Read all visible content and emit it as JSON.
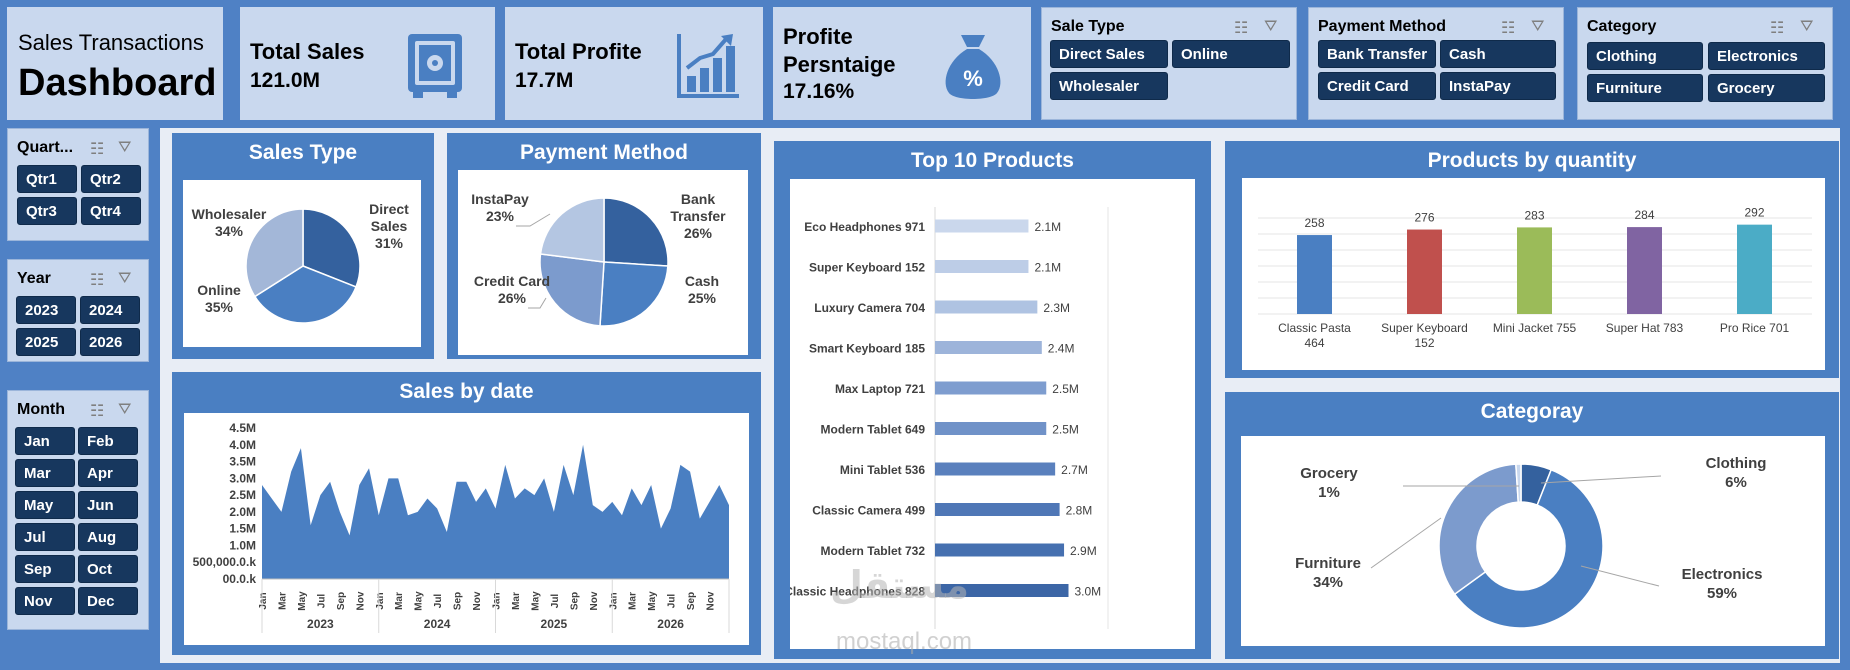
{
  "title": {
    "line1": "Sales Transactions",
    "line2": "Dashboard"
  },
  "kpis": {
    "total_sales": {
      "label": "Total Sales",
      "value": "121.0M",
      "icon": "safe-icon"
    },
    "total_profit": {
      "label": "Total Profite",
      "value": "17.7M",
      "icon": "growth-chart-icon"
    },
    "profit_pct": {
      "label1": "Profite",
      "label2": "Persntaige",
      "value": "17.16%",
      "icon": "money-bag-percent-icon"
    }
  },
  "slicers": {
    "sale_type": {
      "title": "Sale Type",
      "options": [
        "Direct Sales",
        "Online",
        "Wholesaler"
      ]
    },
    "payment_method": {
      "title": "Payment Method",
      "options": [
        "Bank Transfer",
        "Cash",
        "Credit Card",
        "InstaPay"
      ]
    },
    "category": {
      "title": "Category",
      "options": [
        "Clothing",
        "Electronics",
        "Furniture",
        "Grocery"
      ]
    },
    "quarter": {
      "title": "Quart...",
      "options": [
        "Qtr1",
        "Qtr2",
        "Qtr3",
        "Qtr4"
      ]
    },
    "year": {
      "title": "Year",
      "options": [
        "2023",
        "2024",
        "2025",
        "2026"
      ]
    },
    "month": {
      "title": "Month",
      "options": [
        "Jan",
        "Feb",
        "Mar",
        "Apr",
        "May",
        "Jun",
        "Jul",
        "Aug",
        "Sep",
        "Oct",
        "Nov",
        "Dec"
      ]
    }
  },
  "colors": {
    "dark_button": "#17375e",
    "panel_blue": "#4a7fc2",
    "light_panel": "#c9d8ee",
    "bar_dark": "#2f5597"
  },
  "chart_data": [
    {
      "type": "pie",
      "title": "Sales Type",
      "slices": [
        {
          "label": "Direct Sales",
          "value": 31,
          "display": "31%",
          "color": "#34619e"
        },
        {
          "label": "Online",
          "value": 35,
          "display": "35%",
          "color": "#4a7fc2"
        },
        {
          "label": "Wholesaler",
          "value": 34,
          "display": "34%",
          "color": "#a3b7d8"
        }
      ]
    },
    {
      "type": "pie",
      "title": "Payment Method",
      "slices": [
        {
          "label": "Bank Transfer",
          "value": 26,
          "display": "26%",
          "color": "#34619e"
        },
        {
          "label": "Cash",
          "value": 25,
          "display": "25%",
          "color": "#4a7fc2"
        },
        {
          "label": "Credit Card",
          "value": 26,
          "display": "26%",
          "color": "#7c9bcd"
        },
        {
          "label": "InstaPay",
          "value": 23,
          "display": "23%",
          "color": "#b4c6e2"
        }
      ]
    },
    {
      "type": "bar",
      "title": "Top 10 Products",
      "categories": [
        "Eco Headphones 971",
        "Super Keyboard 152",
        "Luxury Camera 704",
        "Smart Keyboard 185",
        "Max Laptop 721",
        "Modern Tablet 649",
        "Mini Tablet 536",
        "Classic Camera 499",
        "Modern Tablet 732",
        "Classic Headphones 828"
      ],
      "values": [
        2.1,
        2.1,
        2.3,
        2.4,
        2.5,
        2.5,
        2.7,
        2.8,
        2.9,
        3.0
      ],
      "labels": [
        "2.1M",
        "2.1M",
        "2.3M",
        "2.4M",
        "2.5M",
        "2.5M",
        "2.7M",
        "2.8M",
        "2.9M",
        "3.0M"
      ]
    },
    {
      "type": "bar",
      "title": "Products by quantity",
      "categories": [
        "Classic Pasta 464",
        "Super Keyboard 152",
        "Mini Jacket 755",
        "Super Hat 783",
        "Pro Rice 701"
      ],
      "values": [
        258,
        276,
        283,
        284,
        292
      ],
      "colors": [
        "#4a7fc2",
        "#c0504d",
        "#9bbb59",
        "#8064a2",
        "#4bacc6"
      ]
    },
    {
      "type": "area",
      "title": "Sales by date",
      "yticks": [
        "4.5M",
        "4.0M",
        "3.5M",
        "3.0M",
        "2.5M",
        "2.0M",
        "1.5M",
        "1.0M",
        "500,000.0.k",
        "00.0.k"
      ],
      "years": [
        "2023",
        "2024",
        "2025",
        "2026"
      ],
      "month_ticks": [
        "Jan",
        "Mar",
        "May",
        "Jul",
        "Sep",
        "Nov"
      ],
      "values": [
        2.8,
        2.4,
        2.0,
        3.2,
        3.9,
        1.6,
        2.5,
        2.9,
        2.0,
        1.3,
        2.8,
        3.3,
        1.9,
        3.0,
        3.0,
        1.9,
        2.0,
        2.4,
        2.1,
        1.4,
        2.9,
        2.9,
        2.3,
        2.7,
        2.1,
        3.4,
        2.4,
        2.7,
        2.5,
        3.0,
        2.0,
        3.4,
        2.5,
        4.0,
        2.2,
        2.0,
        2.3,
        1.9,
        2.7,
        2.2,
        2.8,
        1.5,
        2.1,
        3.4,
        3.2,
        1.8,
        2.3,
        2.8,
        2.2
      ]
    },
    {
      "type": "pie",
      "title": "Categoray",
      "slices": [
        {
          "label": "Clothing",
          "value": 6,
          "display": "6%",
          "color": "#34619e"
        },
        {
          "label": "Electronics",
          "value": 59,
          "display": "59%",
          "color": "#4a7fc2"
        },
        {
          "label": "Furniture",
          "value": 34,
          "display": "34%",
          "color": "#7c9bcd"
        },
        {
          "label": "Grocery",
          "value": 1,
          "display": "1%",
          "color": "#c9d8ee"
        }
      ]
    }
  ],
  "watermark": {
    "arabic": "مستقل",
    "latin": "mostaql.com"
  }
}
